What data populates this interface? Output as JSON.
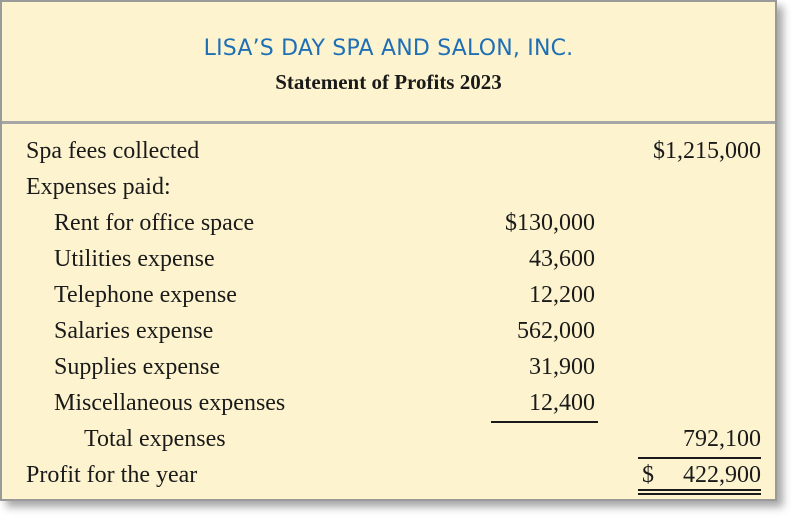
{
  "statement": {
    "company": "LISA’S DAY SPA AND SALON, INC.",
    "title": "Statement of Profits 2023",
    "rows": [
      {
        "label": "Spa fees collected",
        "col1": "",
        "col2": "$1,215,000"
      },
      {
        "label": "Expenses paid:",
        "col1": "",
        "col2": ""
      },
      {
        "label": "Rent for office space",
        "col1": "$130,000",
        "col2": ""
      },
      {
        "label": "Utilities expense",
        "col1": "43,600",
        "col2": ""
      },
      {
        "label": "Telephone expense",
        "col1": "12,200",
        "col2": ""
      },
      {
        "label": "Salaries expense",
        "col1": "562,000",
        "col2": ""
      },
      {
        "label": "Supplies expense",
        "col1": "31,900",
        "col2": ""
      },
      {
        "label": "Miscellaneous expenses",
        "col1": "12,400",
        "col2": ""
      },
      {
        "label": "Total expenses",
        "col1": "",
        "col2": "792,100"
      },
      {
        "label": "Profit for the year",
        "col1": "",
        "col2": "422,900",
        "currency": "$"
      }
    ]
  },
  "colors": {
    "background": "#fdf4cf",
    "company_title": "#1f6fb5",
    "border": "#9a9a9a"
  }
}
